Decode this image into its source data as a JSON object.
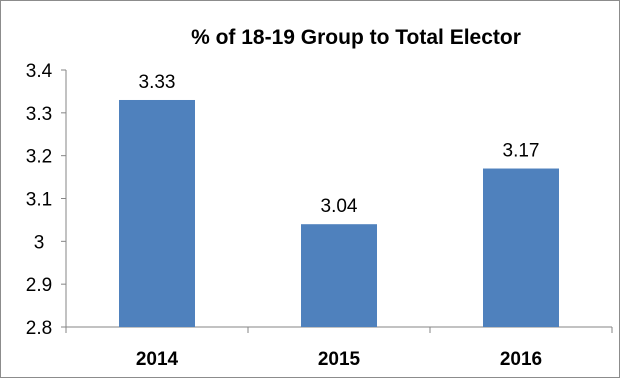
{
  "chart_data": {
    "type": "bar",
    "title": "% of 18-19 Group to Total Elector",
    "xlabel": "",
    "ylabel": "",
    "categories": [
      "2014",
      "2015",
      "2016"
    ],
    "values": [
      3.33,
      3.04,
      3.17
    ],
    "data_labels": [
      "3.33",
      "3.04",
      "3.17"
    ],
    "yticks": [
      "2.8",
      "2.9",
      "3",
      "3.1",
      "3.2",
      "3.3",
      "3.4"
    ],
    "ylim": [
      2.8,
      3.4
    ],
    "bar_color": "#4f81bd",
    "grid": false,
    "legend": "none"
  }
}
